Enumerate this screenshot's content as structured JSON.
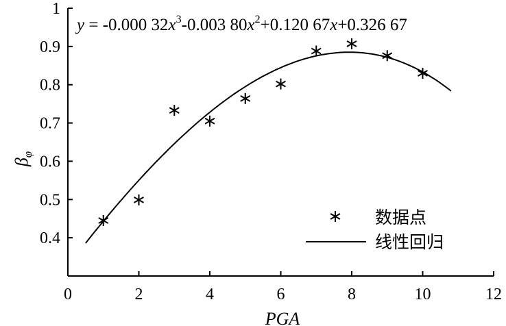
{
  "chart_data": {
    "type": "scatter",
    "xlabel": "PGA",
    "ylabel_base": "β",
    "ylabel_sub": "φ",
    "xlim": [
      0,
      12
    ],
    "ylim": [
      0.3,
      1.0
    ],
    "x_ticks": [
      0,
      2,
      4,
      6,
      8,
      10,
      12
    ],
    "y_ticks": [
      0.4,
      0.5,
      0.6,
      0.7,
      0.8,
      0.9,
      1.0
    ],
    "x_tick_labels": [
      "0",
      "2",
      "4",
      "6",
      "8",
      "10",
      "12"
    ],
    "y_tick_labels": [
      "0.4",
      "0.5",
      "0.6",
      "0.7",
      "0.8",
      "0.9",
      "1"
    ],
    "grid": false,
    "legend_position": "bottom-right",
    "series": [
      {
        "name": "数据点",
        "kind": "scatter",
        "marker": "asterisk",
        "x": [
          1,
          2,
          3,
          4,
          5,
          6,
          7,
          8,
          9,
          10
        ],
        "y": [
          0.445,
          0.499,
          0.733,
          0.705,
          0.764,
          0.802,
          0.888,
          0.907,
          0.876,
          0.83
        ]
      },
      {
        "name": "线性回归",
        "kind": "line",
        "x_range": [
          0.5,
          10.8
        ],
        "coefficients": {
          "a3": -0.00032,
          "a2": -0.0038,
          "a1": 0.12067,
          "a0": 0.32667
        }
      }
    ],
    "annotation": {
      "y_var": "y",
      "eq_part1": " = -0.000 32",
      "x1": "x",
      "sup1": "3",
      "eq_part2": "-0.003 80",
      "x2": "x",
      "sup2": "2",
      "eq_part3": "+0.120 67",
      "x3": "x",
      "eq_part4": "+0.326 67"
    }
  }
}
